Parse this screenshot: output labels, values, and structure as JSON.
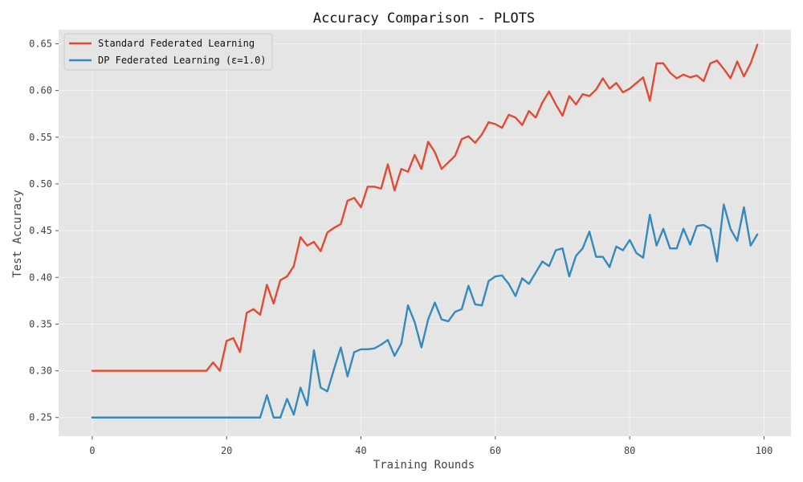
{
  "chart_data": {
    "type": "line",
    "title": "Accuracy Comparison - PLOTS",
    "xlabel": "Training Rounds",
    "ylabel": "Test Accuracy",
    "xlim": [
      -5,
      104
    ],
    "ylim": [
      0.23,
      0.665
    ],
    "xticks": [
      0,
      20,
      40,
      60,
      80,
      100
    ],
    "xtick_labels": [
      "0",
      "20",
      "40",
      "60",
      "80",
      "100"
    ],
    "yticks": [
      0.25,
      0.3,
      0.35,
      0.4,
      0.45,
      0.5,
      0.55,
      0.6,
      0.65
    ],
    "ytick_labels": [
      "0.25",
      "0.30",
      "0.35",
      "0.40",
      "0.45",
      "0.50",
      "0.55",
      "0.60",
      "0.65"
    ],
    "grid": true,
    "legend_position": "top-left",
    "series": [
      {
        "name": "Standard Federated Learning",
        "color": "#e24a33",
        "y": [
          0.3,
          0.3,
          0.3,
          0.3,
          0.3,
          0.3,
          0.3,
          0.3,
          0.3,
          0.3,
          0.3,
          0.3,
          0.3,
          0.3,
          0.3,
          0.3,
          0.3,
          0.3,
          0.309,
          0.3,
          0.332,
          0.335,
          0.32,
          0.362,
          0.366,
          0.36,
          0.392,
          0.372,
          0.397,
          0.401,
          0.412,
          0.443,
          0.434,
          0.438,
          0.428,
          0.448,
          0.453,
          0.457,
          0.482,
          0.485,
          0.475,
          0.497,
          0.497,
          0.495,
          0.521,
          0.493,
          0.516,
          0.513,
          0.531,
          0.516,
          0.545,
          0.534,
          0.516,
          0.523,
          0.53,
          0.548,
          0.551,
          0.544,
          0.553,
          0.566,
          0.564,
          0.56,
          0.574,
          0.571,
          0.563,
          0.578,
          0.571,
          0.587,
          0.599,
          0.585,
          0.573,
          0.594,
          0.585,
          0.596,
          0.594,
          0.601,
          0.613,
          0.602,
          0.608,
          0.598,
          0.602,
          0.608,
          0.614,
          0.589,
          0.629,
          0.629,
          0.619,
          0.613,
          0.617,
          0.614,
          0.616,
          0.61,
          0.629,
          0.632,
          0.623,
          0.613,
          0.631,
          0.615,
          0.629,
          0.649
        ]
      },
      {
        "name": "DP Federated Learning (ε=1.0)",
        "color": "#348abd",
        "y": [
          0.25,
          0.25,
          0.25,
          0.25,
          0.25,
          0.25,
          0.25,
          0.25,
          0.25,
          0.25,
          0.25,
          0.25,
          0.25,
          0.25,
          0.25,
          0.25,
          0.25,
          0.25,
          0.25,
          0.25,
          0.25,
          0.25,
          0.25,
          0.25,
          0.25,
          0.25,
          0.274,
          0.25,
          0.25,
          0.27,
          0.253,
          0.282,
          0.263,
          0.322,
          0.282,
          0.278,
          0.302,
          0.325,
          0.294,
          0.32,
          0.323,
          0.323,
          0.324,
          0.328,
          0.333,
          0.316,
          0.329,
          0.37,
          0.352,
          0.325,
          0.355,
          0.373,
          0.355,
          0.353,
          0.363,
          0.366,
          0.391,
          0.371,
          0.37,
          0.396,
          0.401,
          0.402,
          0.393,
          0.38,
          0.399,
          0.393,
          0.405,
          0.417,
          0.412,
          0.429,
          0.431,
          0.401,
          0.423,
          0.431,
          0.449,
          0.422,
          0.422,
          0.411,
          0.433,
          0.429,
          0.44,
          0.426,
          0.421,
          0.467,
          0.434,
          0.452,
          0.431,
          0.431,
          0.452,
          0.435,
          0.455,
          0.456,
          0.452,
          0.417,
          0.478,
          0.452,
          0.439,
          0.475,
          0.434,
          0.446
        ]
      }
    ]
  }
}
